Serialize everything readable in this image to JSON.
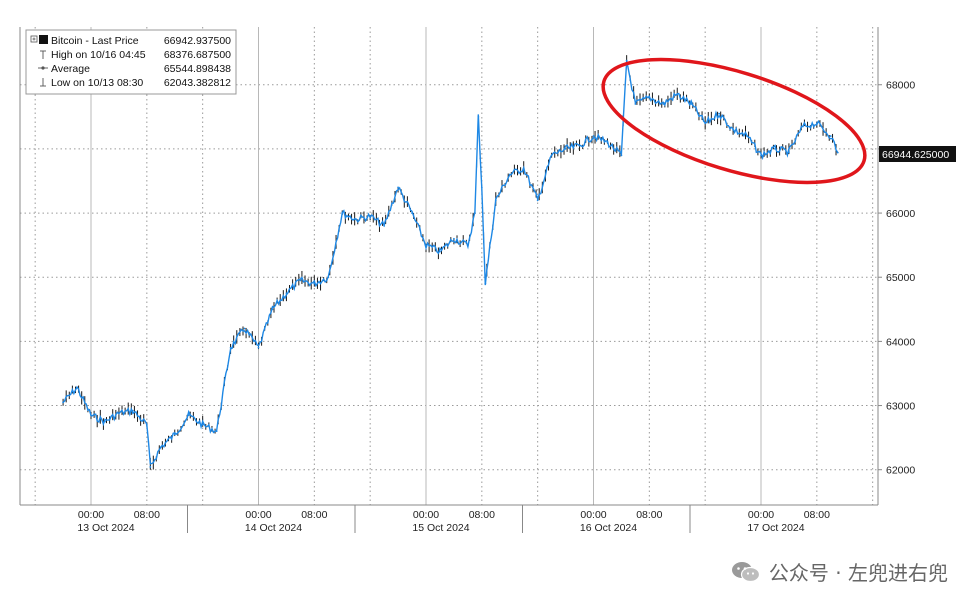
{
  "chart_data": {
    "type": "line",
    "legend": {
      "series_label": "Bitcoin - Last Price",
      "series_value": "66942.937500",
      "high_label": "High on 10/16 04:45",
      "high_value": "68376.687500",
      "average_label": "Average",
      "average_value": "65544.898438",
      "low_label": "Low on 10/13 08:30",
      "low_value": "62043.382812",
      "placement": "top-left"
    },
    "last_price_tag": "66944.625000",
    "y_ticks": [
      "68000",
      "67000",
      "66000",
      "65000",
      "64000",
      "63000",
      "62000"
    ],
    "ylim": [
      61450,
      68900
    ],
    "x_time_labels": [
      "00:00",
      "08:00",
      "00:00",
      "08:00",
      "00:00",
      "08:00",
      "00:00",
      "08:00",
      "00:00",
      "08:00"
    ],
    "x_date_labels": [
      "13 Oct 2024",
      "14 Oct 2024",
      "15 Oct 2024",
      "16 Oct 2024",
      "17 Oct 2024"
    ],
    "grid": true,
    "annotation": "red ellipse around the 16–17 Oct plateau",
    "series": [
      {
        "name": "Bitcoin - Last Price",
        "color": "#1e88e5",
        "x": [
          "10/12 20:00",
          "10/12 22:00",
          "10/13 00:00",
          "10/13 02:00",
          "10/13 04:00",
          "10/13 06:00",
          "10/13 08:00",
          "10/13 08:30",
          "10/13 10:00",
          "10/13 12:00",
          "10/13 14:00",
          "10/13 16:00",
          "10/13 18:00",
          "10/13 20:00",
          "10/13 22:00",
          "10/14 00:00",
          "10/14 02:00",
          "10/14 04:00",
          "10/14 06:00",
          "10/14 08:00",
          "10/14 10:00",
          "10/14 12:00",
          "10/14 14:00",
          "10/14 16:00",
          "10/14 18:00",
          "10/14 20:00",
          "10/14 22:00",
          "10/15 00:00",
          "10/15 02:00",
          "10/15 04:00",
          "10/15 06:00",
          "10/15 07:00",
          "10/15 07:30",
          "10/15 08:00",
          "10/15 08:30",
          "10/15 10:00",
          "10/15 12:00",
          "10/15 14:00",
          "10/15 16:00",
          "10/15 18:00",
          "10/15 20:00",
          "10/15 22:00",
          "10/16 00:00",
          "10/16 02:00",
          "10/16 04:00",
          "10/16 04:45",
          "10/16 06:00",
          "10/16 08:00",
          "10/16 10:00",
          "10/16 12:00",
          "10/16 14:00",
          "10/16 16:00",
          "10/16 18:00",
          "10/16 20:00",
          "10/16 22:00",
          "10/17 00:00",
          "10/17 02:00",
          "10/17 04:00",
          "10/17 06:00",
          "10/17 08:00",
          "10/17 10:00",
          "10/17 11:00"
        ],
        "values": [
          63050,
          63280,
          62850,
          62750,
          62880,
          62920,
          62700,
          62043,
          62350,
          62550,
          62850,
          62700,
          62600,
          63900,
          64200,
          63900,
          64500,
          64750,
          64950,
          64900,
          65000,
          66000,
          65900,
          65950,
          65800,
          66400,
          66000,
          65500,
          65400,
          65600,
          65500,
          66000,
          67500,
          66400,
          64900,
          66200,
          66600,
          66700,
          66200,
          66900,
          67000,
          67050,
          67200,
          67100,
          66900,
          68376,
          67700,
          67800,
          67700,
          67850,
          67700,
          67400,
          67550,
          67300,
          67200,
          66900,
          67000,
          66950,
          67350,
          67400,
          67200,
          66942
        ]
      }
    ]
  },
  "watermark": {
    "icon": "wechat-icon",
    "text": "公众号 · 左兜进右兜"
  }
}
